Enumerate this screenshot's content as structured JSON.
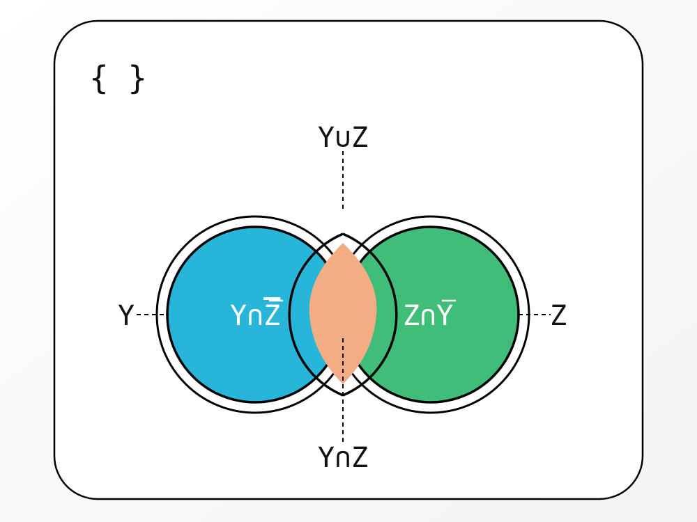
{
  "title": "{ }",
  "sets": {
    "left": {
      "label": "Y",
      "color": "#27b5da"
    },
    "right": {
      "label": "Z",
      "color": "#41bd7a"
    }
  },
  "regions": {
    "left_only": {
      "label_main": "Y∩",
      "label_bar": "Z",
      "text_color": "#ffffff"
    },
    "right_only": {
      "label_main": "Z∩",
      "label_bar": "Y",
      "text_color": "#ffffff"
    },
    "intersection": {
      "color": "#f2ad85"
    }
  },
  "annotations": {
    "union": "Y∪Z",
    "intersection": "Y∩Z"
  },
  "colors": {
    "stroke": "#000000",
    "card_background": "#ffffff",
    "label_text": "#111111"
  }
}
